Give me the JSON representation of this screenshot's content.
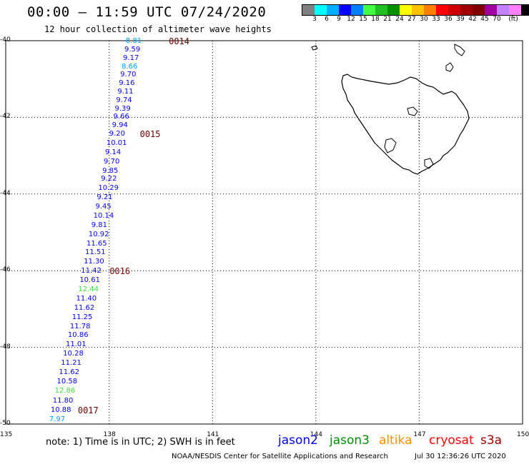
{
  "header": {
    "title": "00:00 – 11:59 UTC 07/24/2020",
    "subtitle": "12 hour collection of altimeter wave heights"
  },
  "legend": {
    "colors": [
      "#808080",
      "#00ffff",
      "#00b0ff",
      "#0000ff",
      "#0080ff",
      "#40ff40",
      "#20c020",
      "#009000",
      "#ffff00",
      "#ffc000",
      "#ff8000",
      "#ff0000",
      "#d00000",
      "#a00000",
      "#800000",
      "#a000a0",
      "#c080ff",
      "#ff80ff",
      "#000000"
    ],
    "labels": [
      "3",
      "6",
      "9",
      "12",
      "15",
      "18",
      "21",
      "24",
      "27",
      "30",
      "33",
      "36",
      "39",
      "42",
      "45",
      "70",
      "(ft)"
    ]
  },
  "axes": {
    "lon_ticks": [
      "135",
      "138",
      "141",
      "144",
      "147",
      "150"
    ],
    "lat_ticks": [
      "-40",
      "-42",
      "-44",
      "-46",
      "-48",
      "-50"
    ]
  },
  "track": {
    "points": [
      {
        "lon": 138.94,
        "lat": -40.02,
        "value": "8.81",
        "color": "#00a0ff"
      },
      {
        "lon": 138.9,
        "lat": -40.24,
        "value": "9.59",
        "color": "#0000ff"
      },
      {
        "lon": 138.86,
        "lat": -40.46,
        "value": "9.17",
        "color": "#0000ff"
      },
      {
        "lon": 138.82,
        "lat": -40.68,
        "value": "8.66",
        "color": "#00a0ff"
      },
      {
        "lon": 138.78,
        "lat": -40.9,
        "value": "9.70",
        "color": "#0000ff"
      },
      {
        "lon": 138.74,
        "lat": -41.12,
        "value": "9.16",
        "color": "#0000ff"
      },
      {
        "lon": 138.7,
        "lat": -41.34,
        "value": "9.11",
        "color": "#0000ff"
      },
      {
        "lon": 138.66,
        "lat": -41.56,
        "value": "9.74",
        "color": "#0000ff"
      },
      {
        "lon": 138.62,
        "lat": -41.78,
        "value": "9.39",
        "color": "#0000ff"
      },
      {
        "lon": 138.58,
        "lat": -42.0,
        "value": "9.66",
        "color": "#0000ff"
      },
      {
        "lon": 138.54,
        "lat": -42.22,
        "value": "9.94",
        "color": "#0000ff"
      },
      {
        "lon": 138.46,
        "lat": -42.44,
        "value": "9.20",
        "color": "#0000ff"
      },
      {
        "lon": 138.38,
        "lat": -42.68,
        "value": "10.01",
        "color": "#0000ff"
      },
      {
        "lon": 138.34,
        "lat": -42.92,
        "value": "9.14",
        "color": "#0000ff"
      },
      {
        "lon": 138.3,
        "lat": -43.16,
        "value": "9.70",
        "color": "#0000ff"
      },
      {
        "lon": 138.26,
        "lat": -43.4,
        "value": "9.85",
        "color": "#0000ff"
      },
      {
        "lon": 138.22,
        "lat": -43.62,
        "value": "9.22",
        "color": "#0000ff"
      },
      {
        "lon": 138.14,
        "lat": -43.86,
        "value": "10.29",
        "color": "#0000ff"
      },
      {
        "lon": 138.1,
        "lat": -44.1,
        "value": "9.21",
        "color": "#0000ff"
      },
      {
        "lon": 138.06,
        "lat": -44.34,
        "value": "9.45",
        "color": "#0000ff"
      },
      {
        "lon": 138.0,
        "lat": -44.58,
        "value": "10.14",
        "color": "#0000ff"
      },
      {
        "lon": 137.94,
        "lat": -44.82,
        "value": "9.81",
        "color": "#0000ff"
      },
      {
        "lon": 137.86,
        "lat": -45.06,
        "value": "10.92",
        "color": "#0000ff"
      },
      {
        "lon": 137.8,
        "lat": -45.3,
        "value": "11.65",
        "color": "#0000ff"
      },
      {
        "lon": 137.76,
        "lat": -45.54,
        "value": "11.51",
        "color": "#0000ff"
      },
      {
        "lon": 137.72,
        "lat": -45.78,
        "value": "11.30",
        "color": "#0000ff"
      },
      {
        "lon": 137.64,
        "lat": -46.02,
        "value": "11.42",
        "color": "#0000ff"
      },
      {
        "lon": 137.6,
        "lat": -46.26,
        "value": "10.61",
        "color": "#0000ff"
      },
      {
        "lon": 137.56,
        "lat": -46.5,
        "value": "12.44",
        "color": "#40e040"
      },
      {
        "lon": 137.5,
        "lat": -46.74,
        "value": "11.40",
        "color": "#0000ff"
      },
      {
        "lon": 137.44,
        "lat": -46.98,
        "value": "11.62",
        "color": "#0000ff"
      },
      {
        "lon": 137.38,
        "lat": -47.22,
        "value": "11.25",
        "color": "#0000ff"
      },
      {
        "lon": 137.32,
        "lat": -47.46,
        "value": "11.78",
        "color": "#0000ff"
      },
      {
        "lon": 137.26,
        "lat": -47.7,
        "value": "10.86",
        "color": "#0000ff"
      },
      {
        "lon": 137.2,
        "lat": -47.94,
        "value": "11.01",
        "color": "#0000ff"
      },
      {
        "lon": 137.12,
        "lat": -48.18,
        "value": "10.28",
        "color": "#0000ff"
      },
      {
        "lon": 137.06,
        "lat": -48.42,
        "value": "11.21",
        "color": "#0000ff"
      },
      {
        "lon": 137.0,
        "lat": -48.66,
        "value": "11.62",
        "color": "#0000ff"
      },
      {
        "lon": 136.94,
        "lat": -48.9,
        "value": "10.58",
        "color": "#0000ff"
      },
      {
        "lon": 136.88,
        "lat": -49.14,
        "value": "12.86",
        "color": "#40e040"
      },
      {
        "lon": 136.82,
        "lat": -49.4,
        "value": "11.80",
        "color": "#0000ff"
      },
      {
        "lon": 136.76,
        "lat": -49.64,
        "value": "10.88",
        "color": "#0000ff"
      },
      {
        "lon": 136.72,
        "lat": -49.88,
        "value": "7.97",
        "color": "#00a0ff"
      }
    ],
    "times": [
      {
        "lon": 139.94,
        "lat": -40.02,
        "label": "0014"
      },
      {
        "lon": 139.1,
        "lat": -42.44,
        "label": "0015"
      },
      {
        "lon": 138.22,
        "lat": -46.02,
        "label": "0016"
      },
      {
        "lon": 137.3,
        "lat": -49.64,
        "label": "0017"
      }
    ]
  },
  "footer": {
    "note": "note: 1) Time is in UTC; 2) SWH is in feet",
    "satellites": [
      {
        "name": "jason2",
        "color": "#0000ff"
      },
      {
        "name": "jason3",
        "color": "#009000"
      },
      {
        "name": "altika",
        "color": "#ff9000"
      },
      {
        "name": "cryosat",
        "color": "#ff0000"
      },
      {
        "name": "s3a",
        "color": "#a00000"
      }
    ],
    "credit": "NOAA/NESDIS Center for Satellite Applications and Research",
    "stamp": "Jul 30 12:36:26 UTC 2020"
  }
}
